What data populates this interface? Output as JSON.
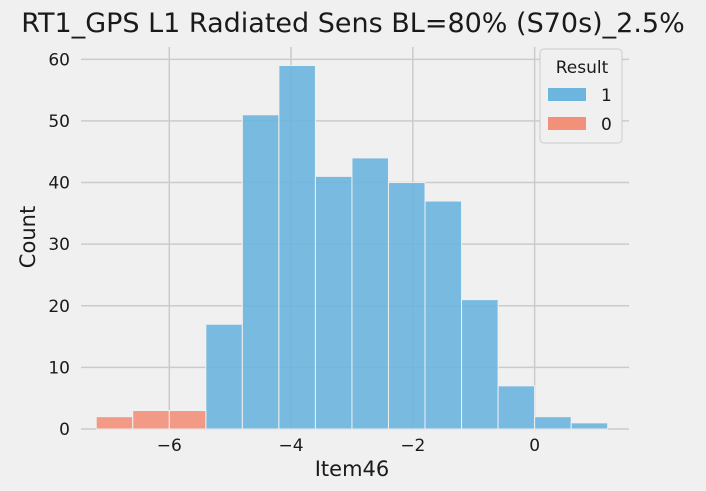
{
  "colors": {
    "background": "#f0f0f0",
    "grid": "#cbcbcb",
    "series_1": "#6bb5de",
    "series_0": "#f3907a"
  },
  "chart_data": {
    "type": "bar",
    "subtype": "histogram",
    "title": "RT1_GPS L1 Radiated Sens BL=80% (S70s)_2.5%",
    "xlabel": "Item46",
    "ylabel": "Count",
    "xlim": [
      -7.45,
      1.55
    ],
    "ylim": [
      0,
      62
    ],
    "xticks": [
      -6,
      -4,
      -2,
      0
    ],
    "xtick_labels": [
      "−6",
      "−4",
      "−2",
      "0"
    ],
    "yticks": [
      0,
      10,
      20,
      30,
      40,
      50,
      60
    ],
    "ytick_labels": [
      "0",
      "10",
      "20",
      "30",
      "40",
      "50",
      "60"
    ],
    "grid": true,
    "legend": {
      "title": "Result",
      "placement": "top-right",
      "entries": [
        {
          "label": "1",
          "series": "1"
        },
        {
          "label": "0",
          "series": "0"
        }
      ]
    },
    "series": [
      {
        "name": "1",
        "color": "#6bb5de",
        "bins": [
          {
            "x0": -5.4,
            "x1": -4.8,
            "count": 17
          },
          {
            "x0": -4.8,
            "x1": -4.2,
            "count": 51
          },
          {
            "x0": -4.2,
            "x1": -3.6,
            "count": 59
          },
          {
            "x0": -3.6,
            "x1": -3.0,
            "count": 41
          },
          {
            "x0": -3.0,
            "x1": -2.4,
            "count": 44
          },
          {
            "x0": -2.4,
            "x1": -1.8,
            "count": 40
          },
          {
            "x0": -1.8,
            "x1": -1.2,
            "count": 37
          },
          {
            "x0": -1.2,
            "x1": -0.6,
            "count": 21
          },
          {
            "x0": -0.6,
            "x1": 0.0,
            "count": 7
          },
          {
            "x0": 0.0,
            "x1": 0.6,
            "count": 2
          },
          {
            "x0": 0.6,
            "x1": 1.2,
            "count": 1
          }
        ]
      },
      {
        "name": "0",
        "color": "#f3907a",
        "bins": [
          {
            "x0": -7.2,
            "x1": -6.6,
            "count": 2
          },
          {
            "x0": -6.6,
            "x1": -6.0,
            "count": 3
          },
          {
            "x0": -6.0,
            "x1": -5.4,
            "count": 3
          }
        ]
      }
    ]
  }
}
